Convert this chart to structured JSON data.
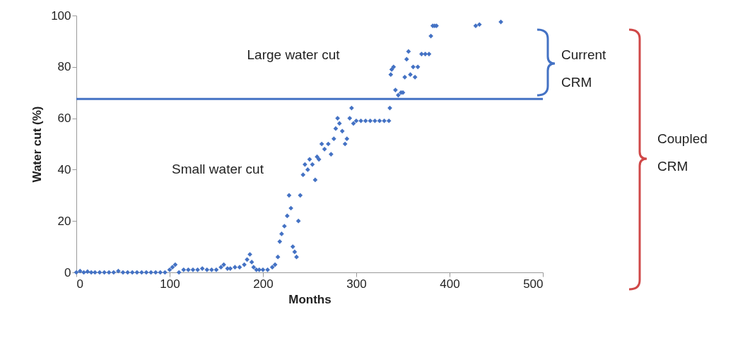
{
  "chart_data": {
    "type": "scatter",
    "xlabel": "Months",
    "ylabel": "Water cut (%)",
    "x": [
      0,
      4,
      8,
      12,
      16,
      20,
      25,
      30,
      35,
      40,
      45,
      50,
      55,
      60,
      65,
      70,
      75,
      80,
      85,
      90,
      95,
      100,
      103,
      106,
      110,
      115,
      120,
      125,
      130,
      135,
      140,
      145,
      150,
      155,
      158,
      162,
      165,
      170,
      175,
      180,
      183,
      186,
      188,
      190,
      193,
      196,
      200,
      205,
      210,
      213,
      216,
      218,
      220,
      223,
      226,
      228,
      230,
      232,
      234,
      236,
      238,
      240,
      243,
      245,
      248,
      250,
      253,
      256,
      258,
      260,
      263,
      266,
      270,
      273,
      276,
      278,
      280,
      282,
      285,
      288,
      290,
      293,
      295,
      297,
      300,
      305,
      310,
      315,
      320,
      325,
      330,
      335,
      336,
      337,
      338,
      340,
      342,
      345,
      348,
      350,
      352,
      354,
      356,
      358,
      361,
      363,
      366,
      370,
      374,
      378,
      380,
      382,
      384,
      386,
      428,
      432,
      455
    ],
    "series": [
      {
        "color": "#4472c4",
        "values": [
          0,
          0.5,
          0,
          0.3,
          0,
          0,
          0,
          0,
          0,
          0,
          0.5,
          0,
          0,
          0,
          0,
          0,
          0,
          0,
          0,
          0,
          0,
          1,
          2,
          3,
          0,
          1,
          1,
          1,
          1,
          1.5,
          1,
          1,
          1,
          2,
          3,
          1.5,
          1.5,
          2,
          2,
          3,
          5,
          7,
          4,
          2,
          1,
          1,
          1,
          1,
          2,
          3,
          6,
          12,
          15,
          18,
          22,
          30,
          25,
          10,
          8,
          6,
          20,
          30,
          38,
          42,
          40,
          44,
          42,
          36,
          45,
          44,
          50,
          48,
          50,
          46,
          52,
          56,
          60,
          58,
          55,
          50,
          52,
          60,
          64,
          58,
          59,
          59,
          59,
          59,
          59,
          59,
          59,
          59,
          64,
          77,
          79,
          80,
          71,
          69,
          70,
          70,
          76,
          83,
          86,
          77,
          80,
          76,
          80,
          85,
          85,
          85,
          92,
          96,
          96,
          96,
          96,
          96.5,
          97.5
        ]
      }
    ],
    "marker": "diamond",
    "grid": false,
    "xlim": [
      0,
      500
    ],
    "xticks": [
      0,
      100,
      200,
      300,
      400,
      500
    ],
    "ylim": [
      0,
      100
    ],
    "yticks": [
      0,
      20,
      40,
      60,
      80,
      100
    ],
    "ref_lines": [
      {
        "axis": "y",
        "value": 67.5,
        "color": "#4472c4"
      }
    ],
    "annotations": [
      "Large  water cut",
      "Small water cut",
      "Current CRM",
      "Coupled CRM"
    ]
  }
}
